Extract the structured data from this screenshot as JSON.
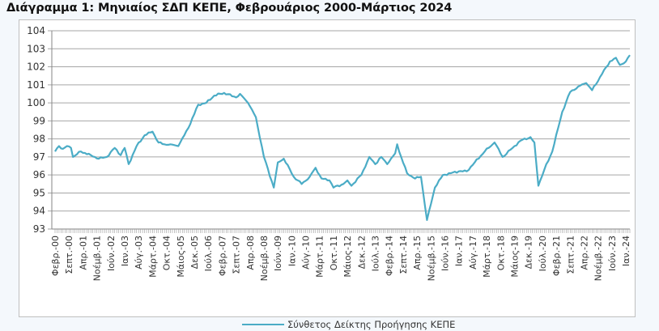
{
  "page": {
    "title": "Διάγραμμα 1: Μηνιαίος ΣΔΠ ΚΕΠΕ, Φεβρουάριος 2000-Μάρτιος 2024"
  },
  "colors": {
    "series": "#4bacc6",
    "grid": "#a6a6a6",
    "axis": "#868686"
  },
  "chart_data": {
    "type": "line",
    "title": "Διάγραμμα 1: Μηνιαίος ΣΔΠ ΚΕΠΕ, Φεβρουάριος 2000-Μάρτιος 2024",
    "xlabel": "",
    "ylabel": "",
    "ylim": [
      93,
      104
    ],
    "yticks": [
      93,
      94,
      95,
      96,
      97,
      98,
      99,
      100,
      101,
      102,
      103,
      104
    ],
    "grid": true,
    "legend_position": "bottom",
    "x_start": "Φεβρ.-00",
    "x_end": "Μάρτ.-24",
    "x_tick_step_months": 7,
    "x_tick_labels": [
      "Φεβρ.-00",
      "Σεπτ.-00",
      "Απρ.-01",
      "Νοέμβ.-01",
      "Ιούν.-02",
      "Ιαν.-03",
      "Αύγ.-03",
      "Μάρτ.-04",
      "Οκτ.-04",
      "Μάιος-05",
      "Δεκ.-05",
      "Ιούλ.-06",
      "Φεβρ.-07",
      "Σεπτ.-07",
      "Απρ.-08",
      "Νοέμβ.-08",
      "Ιούν.-09",
      "Ιαν.-10",
      "Αύγ.-10",
      "Μάρτ.-11",
      "Οκτ.-11",
      "Μάιος-12",
      "Δεκ.-12",
      "Ιούλ.-13",
      "Φεβρ.-14",
      "Σεπτ.-14",
      "Απρ.-15",
      "Νοέμβ.-15",
      "Ιούν.-16",
      "Ιαν.-17",
      "Αύγ.-17",
      "Μάρτ.-18",
      "Οκτ.-18",
      "Μάιος-19",
      "Δεκ.-19",
      "Ιούλ.-20",
      "Φεβρ.-21",
      "Σεπτ.-21",
      "Απρ.-22",
      "Νοέμβ.-22",
      "Ιούν.-23",
      "Ιαν.-24"
    ],
    "series": [
      {
        "name": "Σύνθετος Δείκτης Προήγησης ΚΕΠΕ",
        "anchors_month_index": [
          0,
          2,
          4,
          6,
          8,
          9,
          13,
          18,
          22,
          26,
          30,
          33,
          35,
          37,
          41,
          45,
          49,
          52,
          55,
          58,
          62,
          67,
          72,
          76,
          80,
          85,
          91,
          93,
          97,
          101,
          105,
          110,
          112,
          115,
          120,
          124,
          128,
          131,
          134,
          138,
          140,
          145,
          147,
          149,
          154,
          158,
          161,
          164,
          167,
          171,
          172,
          174,
          177,
          181,
          184,
          187,
          191,
          195,
          199,
          203,
          207,
          211,
          216,
          221,
          225,
          230,
          234,
          239,
          241,
          243,
          246,
          250,
          255,
          259,
          263,
          267,
          270,
          275,
          279,
          282,
          284,
          287,
          289
        ],
        "anchors_value": [
          97.3,
          97.6,
          97.45,
          97.6,
          97.5,
          97.0,
          97.3,
          97.1,
          96.9,
          97.0,
          97.5,
          97.1,
          97.5,
          96.6,
          97.6,
          98.2,
          98.4,
          97.8,
          97.7,
          97.7,
          97.6,
          98.6,
          99.9,
          100.0,
          100.4,
          100.55,
          100.3,
          100.5,
          100.0,
          99.2,
          97.0,
          95.3,
          96.7,
          96.9,
          95.9,
          95.5,
          95.9,
          96.4,
          95.8,
          95.7,
          95.3,
          95.5,
          95.7,
          95.4,
          96.0,
          97.0,
          96.6,
          97.0,
          96.6,
          97.2,
          97.7,
          97.0,
          96.1,
          95.8,
          95.9,
          93.5,
          95.3,
          96.0,
          96.1,
          96.2,
          96.2,
          96.7,
          97.3,
          97.8,
          97.0,
          97.5,
          97.9,
          98.1,
          97.8,
          95.4,
          96.3,
          97.3,
          99.5,
          100.6,
          100.9,
          101.1,
          100.7,
          101.6,
          102.3,
          102.5,
          102.1,
          102.3,
          102.65
        ]
      }
    ]
  },
  "legend": {
    "label": "Σύνθετος Δείκτης Προήγησης ΚΕΠΕ"
  }
}
